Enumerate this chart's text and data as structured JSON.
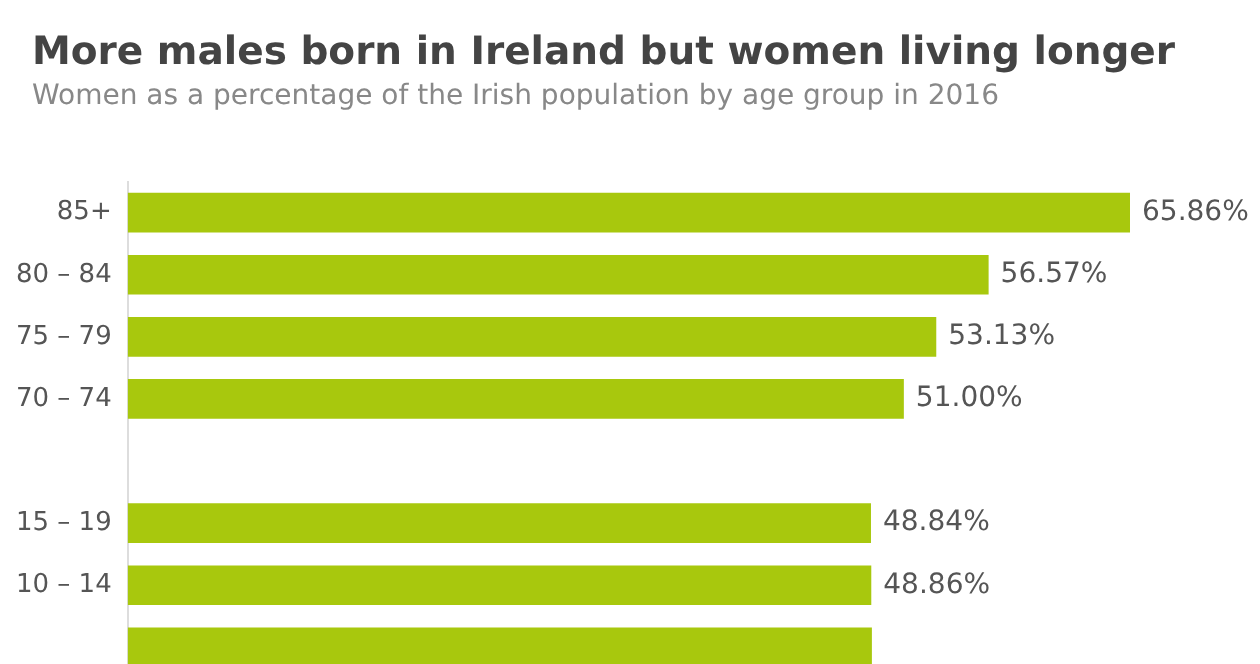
{
  "chart_data": {
    "type": "bar",
    "orientation": "horizontal",
    "title": "More males born in Ireland but women living longer",
    "subtitle": "Women as a percentage of the Irish population by age group in 2016",
    "categories": [
      "85+",
      "80 – 84",
      "75 – 79",
      "70 – 74",
      null,
      "15 – 19",
      "10 – 14",
      null
    ],
    "values": [
      65.86,
      56.57,
      53.13,
      51.0,
      null,
      48.84,
      48.86,
      48.9
    ],
    "value_labels": [
      "65.86%",
      "56.57%",
      "53.13%",
      "51.00%",
      null,
      "48.84%",
      "48.86%",
      null
    ],
    "color": "#a8c80d",
    "grid": false,
    "legend": false,
    "tick_labels": "y"
  }
}
